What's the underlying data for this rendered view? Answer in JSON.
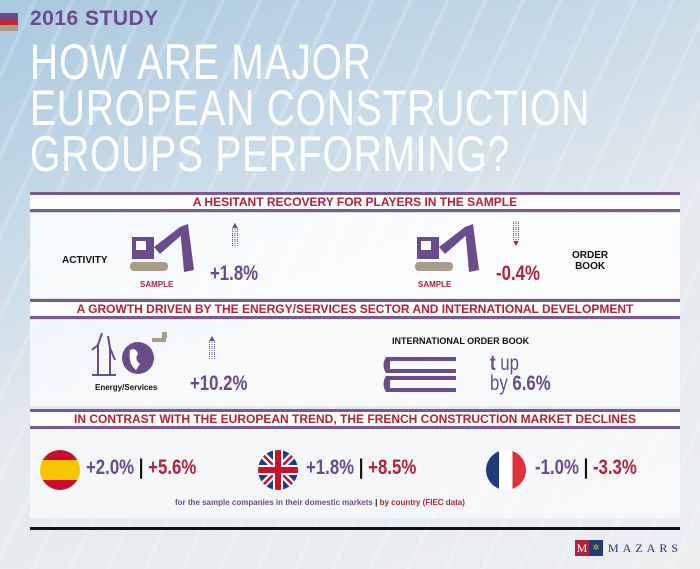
{
  "header": {
    "study": "2016 STUDY",
    "title_lines": [
      "HOW ARE MAJOR",
      "EUROPEAN CONSTRUCTION",
      "GROUPS PERFORMING?"
    ]
  },
  "section1": {
    "heading": "A HESITANT RECOVERY FOR PLAYERS IN THE SAMPLE",
    "activity": {
      "label": "ACTIVITY",
      "sample": "SAMPLE",
      "value": "+1.8%",
      "direction": "up"
    },
    "order_book": {
      "label_1": "ORDER",
      "label_2": "BOOK",
      "sample": "SAMPLE",
      "value": "-0.4%",
      "direction": "down"
    }
  },
  "section2": {
    "heading": "A GROWTH DRIVEN BY THE ENERGY/SERVICES SECTOR AND INTERNATIONAL DEVELOPMENT",
    "energy": {
      "label": "Energy/Services",
      "value": "+10.2%"
    },
    "international": {
      "label": "INTERNATIONAL ORDER BOOK",
      "arrow": "t",
      "up": "up",
      "by": "by",
      "value": "6.6%"
    }
  },
  "section3": {
    "heading": "IN CONTRAST WITH THE EUROPEAN TREND, THE FRENCH CONSTRUCTION MARKET DECLINES",
    "countries": [
      {
        "flag": "spain",
        "sample": "+2.0%",
        "country": "+5.6%"
      },
      {
        "flag": "uk",
        "sample": "+1.8%",
        "country": "+8.5%"
      },
      {
        "flag": "france",
        "sample": "-1.0%",
        "country": "-3.3%"
      }
    ],
    "separator": "|",
    "footnote_sample": "for the sample companies in their domestic markets",
    "footnote_sep": "|",
    "footnote_country": "by country (FIEC data)"
  },
  "logo": {
    "m": "M",
    "name": "MAZARS"
  },
  "colors": {
    "purple": "#6b4c8a",
    "red": "#b0233a"
  }
}
